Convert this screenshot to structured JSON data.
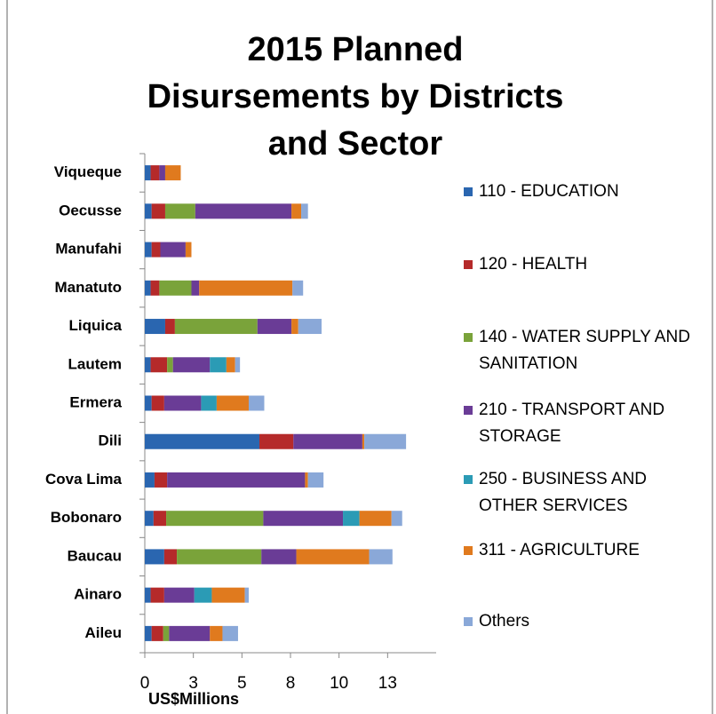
{
  "chart_data": {
    "type": "stacked-bar-horizontal",
    "title": "2015 Planned Disursements by Districts and Sector",
    "xlabel": "US$Millions",
    "categories": [
      "Viqueque",
      "Oecusse",
      "Manufahi",
      "Manatuto",
      "Liquica",
      "Lautem",
      "Ermera",
      "Dili",
      "Cova Lima",
      "Bobonaro",
      "Baucau",
      "Ainaro",
      "Aileu"
    ],
    "series": [
      {
        "name": "110 - EDUCATION",
        "color": "#2a66b0",
        "values": [
          0.3,
          0.35,
          0.35,
          0.3,
          1.05,
          0.3,
          0.35,
          5.9,
          0.5,
          0.45,
          1.0,
          0.3,
          0.35
        ]
      },
      {
        "name": "120 - HEALTH",
        "color": "#b52a2a",
        "values": [
          0.45,
          0.7,
          0.45,
          0.45,
          0.5,
          0.85,
          0.65,
          1.75,
          0.65,
          0.65,
          0.65,
          0.7,
          0.6
        ]
      },
      {
        "name": "140 - WATER SUPPLY AND SANITATION",
        "color": "#7aa33a",
        "values": [
          0,
          1.55,
          0,
          1.65,
          4.25,
          0.3,
          0,
          0,
          0,
          5.0,
          4.35,
          0,
          0.3
        ]
      },
      {
        "name": "210 - TRANSPORT AND STORAGE",
        "color": "#6a3c96",
        "values": [
          0.3,
          4.95,
          1.3,
          0.4,
          1.75,
          1.9,
          1.9,
          3.55,
          7.1,
          4.1,
          1.8,
          1.55,
          2.1
        ]
      },
      {
        "name": "250 - BUSINESS AND OTHER SERVICES",
        "color": "#2b9bb5",
        "values": [
          0,
          0,
          0,
          0,
          0,
          0.85,
          0.8,
          0,
          0,
          0.85,
          0,
          0.9,
          0
        ]
      },
      {
        "name": "311 - AGRICULTURE",
        "color": "#e07a1e",
        "values": [
          0.8,
          0.5,
          0.3,
          4.8,
          0.35,
          0.45,
          1.65,
          0.1,
          0.15,
          1.65,
          3.75,
          1.7,
          0.65
        ]
      },
      {
        "name": "Others",
        "color": "#8aa8d8",
        "values": [
          0,
          0.35,
          0,
          0.55,
          1.2,
          0.25,
          0.8,
          2.15,
          0.8,
          0.55,
          1.2,
          0.2,
          0.8
        ]
      }
    ],
    "xlim": [
      0,
      15
    ],
    "xticks": [
      0,
      {
        "value": 2.5,
        "label": "3"
      },
      5,
      {
        "value": 7.5,
        "label": "8"
      },
      10,
      {
        "value": 12.5,
        "label": "13"
      }
    ],
    "grid": false
  }
}
